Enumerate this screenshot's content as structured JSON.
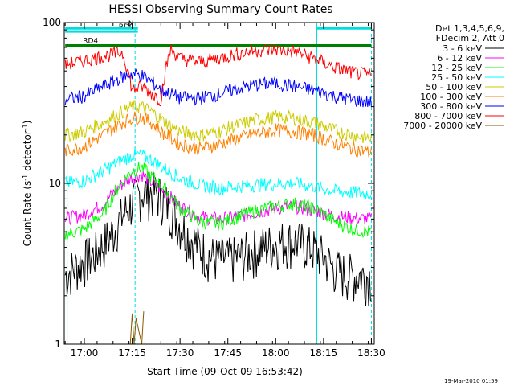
{
  "chart_data": {
    "type": "line",
    "title": "HESSI Observing Summary Count Rates",
    "xlabel": "Start Time (09-Oct-09 16:53:42)",
    "ylabel_main": "Count Rate (s",
    "ylabel_sup": "-1",
    "ylabel_tail": " detector",
    "ylabel_end": ")",
    "yscale": "log",
    "ylim": [
      1,
      100
    ],
    "xlim": [
      16.895,
      18.515
    ],
    "y_ticks": [
      {
        "v": 1,
        "label": "1"
      },
      {
        "v": 10,
        "label": "10"
      },
      {
        "v": 100,
        "label": "100"
      }
    ],
    "x_ticks": [
      {
        "v": 17.0,
        "label": "17:00"
      },
      {
        "v": 17.25,
        "label": "17:15"
      },
      {
        "v": 17.5,
        "label": "17:30"
      },
      {
        "v": 17.75,
        "label": "17:45"
      },
      {
        "v": 18.0,
        "label": "18:00"
      },
      {
        "v": 18.25,
        "label": "18:15"
      },
      {
        "v": 18.5,
        "label": "18:30"
      }
    ],
    "legend_header": [
      "Det 1,3,4,5,6,9,",
      "FDecim 2, Att 0"
    ],
    "series": [
      {
        "name": "3 - 6 keV",
        "color": "#000000",
        "x": [
          16.9,
          16.95,
          17.0,
          17.05,
          17.1,
          17.15,
          17.2,
          17.25,
          17.3,
          17.35,
          17.4,
          17.45,
          17.5,
          17.55,
          17.6,
          17.65,
          17.7,
          17.75,
          17.8,
          17.85,
          17.9,
          17.95,
          18.0,
          18.05,
          18.1,
          18.15,
          18.2,
          18.25,
          18.3,
          18.35,
          18.4,
          18.45,
          18.5
        ],
        "y": [
          2.7,
          3.0,
          3.3,
          3.6,
          4.2,
          5.0,
          6.3,
          7.6,
          8.8,
          8.9,
          8.3,
          7.0,
          5.6,
          4.7,
          4.0,
          3.6,
          3.4,
          3.4,
          3.5,
          3.7,
          3.9,
          4.1,
          4.3,
          4.4,
          4.4,
          4.2,
          3.9,
          3.5,
          3.0,
          2.8,
          2.7,
          2.7,
          2.6
        ]
      },
      {
        "name": "6 - 12 keV",
        "color": "#ff00ff",
        "x": [
          16.9,
          17.0,
          17.1,
          17.2,
          17.25,
          17.3,
          17.35,
          17.4,
          17.5,
          17.6,
          17.7,
          17.8,
          17.9,
          18.0,
          18.1,
          18.2,
          18.3,
          18.4,
          18.5
        ],
        "y": [
          6.0,
          6.4,
          7.4,
          10.0,
          11.0,
          11.4,
          10.2,
          9.2,
          7.2,
          6.2,
          6.0,
          6.2,
          6.6,
          7.0,
          7.2,
          6.8,
          6.3,
          6.1,
          6.0
        ]
      },
      {
        "name": "12 - 25 keV",
        "color": "#00ff00",
        "x": [
          16.9,
          17.0,
          17.1,
          17.2,
          17.25,
          17.3,
          17.35,
          17.4,
          17.5,
          17.6,
          17.7,
          17.8,
          17.9,
          18.0,
          18.1,
          18.2,
          18.3,
          18.4,
          18.5
        ],
        "y": [
          4.8,
          5.2,
          6.5,
          10.4,
          12.0,
          12.6,
          11.0,
          9.8,
          7.0,
          5.8,
          5.6,
          6.2,
          6.8,
          7.2,
          7.5,
          7.0,
          5.9,
          5.2,
          5.0
        ]
      },
      {
        "name": "25 - 50 keV",
        "color": "#00ffff",
        "x": [
          16.9,
          17.0,
          17.1,
          17.2,
          17.25,
          17.3,
          17.35,
          17.4,
          17.5,
          17.6,
          17.7,
          17.8,
          17.9,
          18.0,
          18.1,
          18.2,
          18.3,
          18.4,
          18.5
        ],
        "y": [
          10.0,
          10.4,
          12.0,
          14.0,
          15.0,
          15.0,
          14.0,
          12.8,
          10.8,
          9.8,
          9.4,
          9.6,
          9.8,
          10.0,
          10.0,
          9.6,
          9.0,
          8.8,
          8.6
        ]
      },
      {
        "name": "50 - 100 keV",
        "color": "#cccc00",
        "x": [
          16.9,
          17.0,
          17.1,
          17.2,
          17.25,
          17.3,
          17.35,
          17.4,
          17.5,
          17.6,
          17.7,
          17.8,
          17.9,
          18.0,
          18.1,
          18.2,
          18.3,
          18.4,
          18.5
        ],
        "y": [
          20.0,
          21.0,
          24.0,
          28.0,
          30.0,
          30.0,
          28.0,
          25.0,
          21.0,
          20.0,
          21.0,
          23.0,
          25.0,
          26.0,
          25.5,
          24.0,
          21.5,
          20.0,
          19.0
        ]
      },
      {
        "name": "100 - 300 keV",
        "color": "#ff8000",
        "x": [
          16.9,
          17.0,
          17.1,
          17.2,
          17.25,
          17.3,
          17.35,
          17.4,
          17.5,
          17.6,
          17.7,
          17.8,
          17.9,
          18.0,
          18.1,
          18.2,
          18.3,
          18.4,
          18.5
        ],
        "y": [
          16.0,
          17.0,
          20.0,
          24.0,
          25.5,
          26.0,
          24.0,
          21.0,
          17.5,
          16.5,
          17.5,
          19.0,
          20.5,
          21.5,
          21.0,
          20.0,
          18.0,
          16.5,
          15.5
        ]
      },
      {
        "name": "300 - 800 keV",
        "color": "#0000ff",
        "x": [
          16.9,
          17.0,
          17.1,
          17.2,
          17.25,
          17.3,
          17.35,
          17.4,
          17.5,
          17.6,
          17.7,
          17.8,
          17.9,
          18.0,
          18.1,
          18.2,
          18.3,
          18.4,
          18.5
        ],
        "y": [
          33.0,
          35.0,
          40.0,
          46.0,
          48.0,
          47.0,
          43.0,
          38.0,
          34.0,
          34.0,
          36.0,
          39.0,
          41.0,
          42.0,
          40.0,
          38.0,
          35.0,
          33.0,
          32.0
        ]
      },
      {
        "name": "800 - 7000 keV",
        "color": "#ff0000",
        "x": [
          16.9,
          17.0,
          17.1,
          17.2,
          17.25,
          17.3,
          17.4,
          17.45,
          17.5,
          17.6,
          17.7,
          17.8,
          17.9,
          18.0,
          18.1,
          18.2,
          18.3,
          18.4,
          18.5
        ],
        "y": [
          55.0,
          58.0,
          62.0,
          65.0,
          38.0,
          40.0,
          33.0,
          68.0,
          60.0,
          57.0,
          60.0,
          64.0,
          67.0,
          68.0,
          66.0,
          60.0,
          53.0,
          49.0,
          47.0
        ]
      },
      {
        "name": "7000 - 20000 keV",
        "color": "#8b5a00",
        "x": [
          17.24,
          17.25,
          17.26,
          17.27,
          17.3,
          17.31
        ],
        "y": [
          1.0,
          1.55,
          1.0,
          1.45,
          1.0,
          1.6
        ]
      }
    ],
    "flags": [
      {
        "label": "RD0",
        "color": "#00dddd",
        "y": 88,
        "x_start": 16.9,
        "x_end": 17.28
      },
      {
        "label": "N",
        "color": "#00dddd",
        "y": 92,
        "x_start": 16.9,
        "x_end": 17.28
      },
      {
        "label": "RD4",
        "color": "#008000",
        "y": 72,
        "x_start": 16.9,
        "x_end": 18.5
      }
    ],
    "event_lines": [
      16.91,
      17.265,
      18.215,
      18.5
    ],
    "grid": false,
    "legend_position": "right"
  },
  "footer": {
    "timestamp": "19-Mar-2010 01:59"
  }
}
